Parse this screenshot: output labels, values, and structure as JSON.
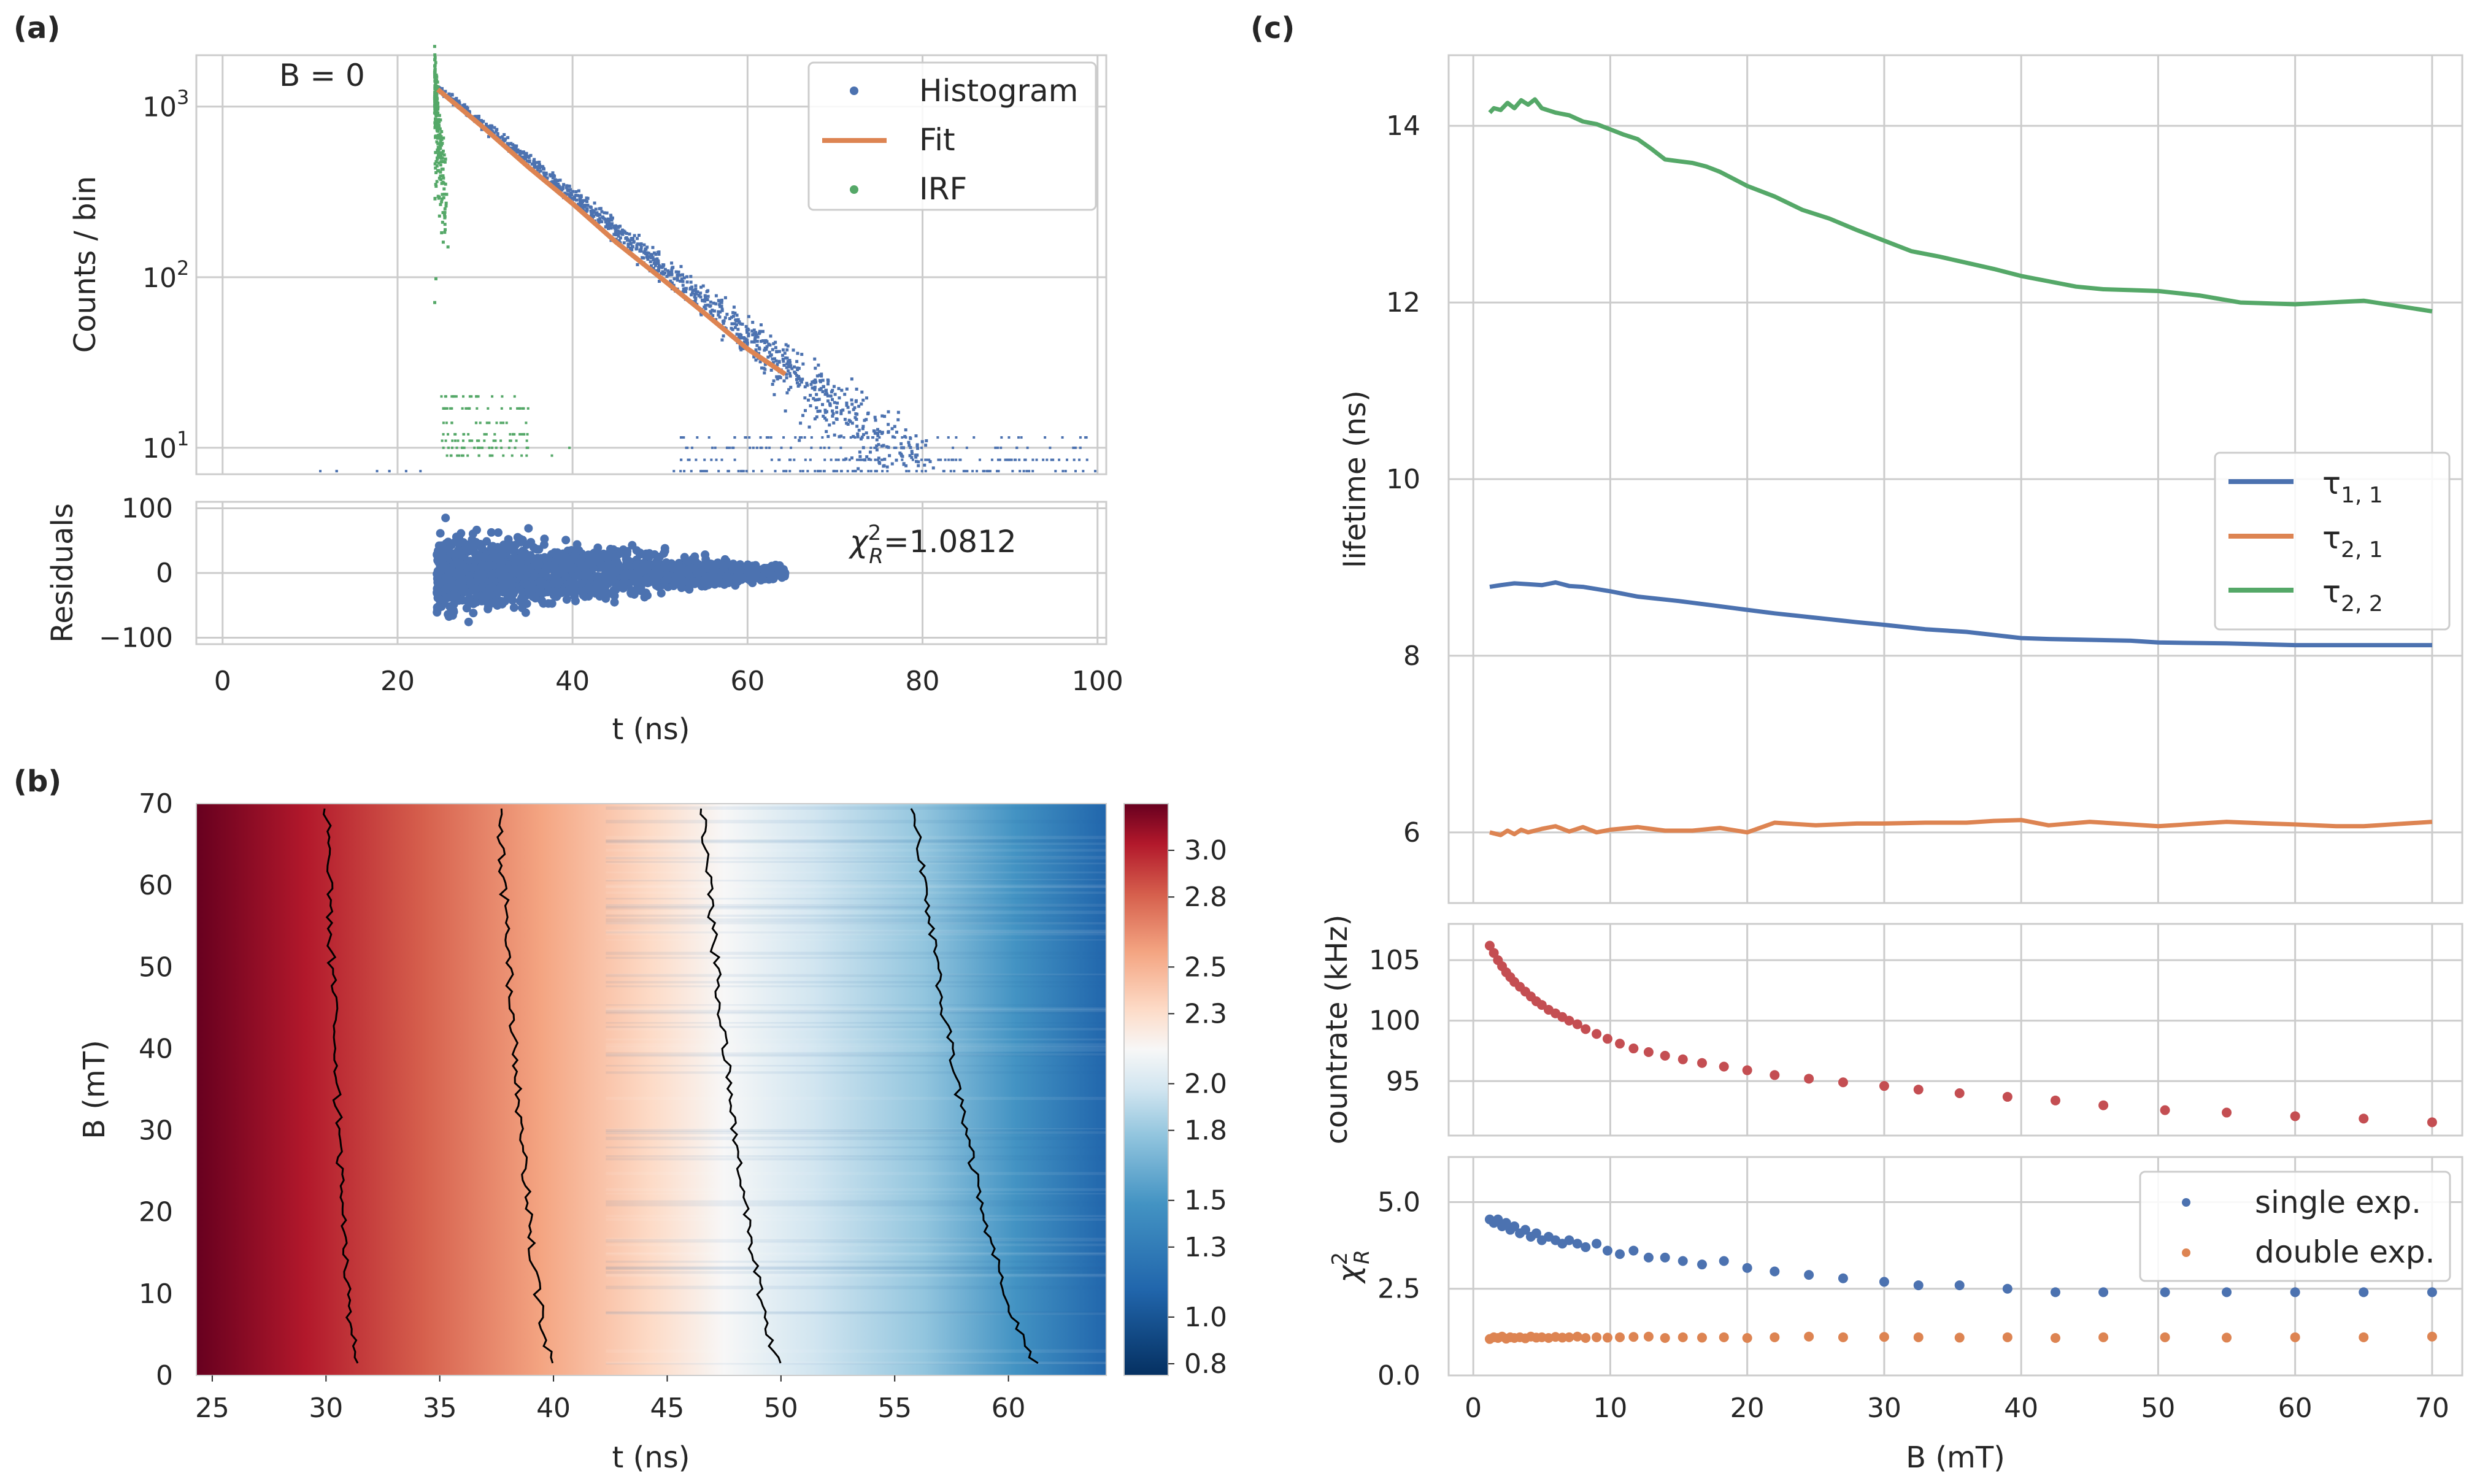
{
  "colors": {
    "blue": "#4c72b0",
    "orange": "#dd8452",
    "green": "#55a868",
    "red": "#c44e52",
    "grid": "#cccccc"
  },
  "chart_data": [
    {
      "id": "a_top",
      "panel_label": "(a)",
      "type": "scatter",
      "yscale": "log",
      "annotation": "B = 0",
      "ylabel": "Counts / bin",
      "xlim": [
        -3,
        101
      ],
      "ylim": [
        7,
        2000
      ],
      "yticks": [
        10,
        100,
        1000
      ],
      "ytick_labels": [
        "10^1",
        "10^2",
        "10^3"
      ],
      "series": [
        {
          "name": "Histogram",
          "kind": "points",
          "color": "#4c72b0",
          "peak_t": 24.5,
          "peak": 1300,
          "tau": 10.6,
          "floor_t": [
            2,
            100
          ]
        },
        {
          "name": "Fit",
          "kind": "line",
          "color": "#dd8452",
          "x": [
            24.6,
            30,
            35,
            40,
            45,
            50,
            55,
            60,
            64.3
          ],
          "y": [
            1260,
            740,
            440,
            270,
            160,
            100,
            62,
            38,
            27
          ]
        },
        {
          "name": "IRF",
          "kind": "points",
          "color": "#55a868",
          "peak_t": 24.2,
          "peak": 1250,
          "tau": 0.8,
          "floor_t": [
            24,
            45
          ]
        }
      ],
      "legend": [
        "Histogram",
        "Fit",
        "IRF"
      ]
    },
    {
      "id": "a_bottom",
      "type": "scatter",
      "ylabel": "Residuals",
      "xlabel": "t (ns)",
      "xlim": [
        -3,
        101
      ],
      "ylim": [
        -110,
        110
      ],
      "xticks": [
        0,
        20,
        40,
        60,
        80,
        100
      ],
      "yticks": [
        -100,
        0,
        100
      ],
      "annotation_pre": "χ",
      "annotation_sup": "2",
      "annotation_sub": "R",
      "annotation_post": "=1.0812",
      "residual_range_t": [
        24.5,
        64.3
      ],
      "residual_spread": [
        95,
        15
      ]
    },
    {
      "id": "b",
      "panel_label": "(b)",
      "type": "heatmap",
      "xlabel": "t (ns)",
      "ylabel": "B (mT)",
      "xlim": [
        24.3,
        64.3
      ],
      "ylim": [
        0,
        70
      ],
      "xticks": [
        25,
        30,
        35,
        40,
        45,
        50,
        55,
        60
      ],
      "yticks": [
        0,
        10,
        20,
        30,
        40,
        50,
        60,
        70
      ],
      "colorbar_ticks": [
        3.0,
        2.8,
        2.5,
        2.3,
        2.0,
        1.8,
        1.5,
        1.3,
        1.0,
        0.8
      ],
      "color_range": [
        0.75,
        3.2
      ],
      "contours": [
        {
          "t0": 31.5,
          "t70": 30.0
        },
        {
          "t0": 40.2,
          "t70": 37.6
        },
        {
          "t0": 50.4,
          "t70": 46.5
        },
        {
          "t0": 62.0,
          "t70": 55.8
        }
      ]
    },
    {
      "id": "c_top",
      "panel_label": "(c)",
      "type": "line",
      "ylabel": "lifetime (ns)",
      "xlim": [
        -1.8,
        72.2
      ],
      "ylim": [
        5.2,
        14.8
      ],
      "xticks": [
        0,
        10,
        20,
        30,
        40,
        50,
        60,
        70
      ],
      "yticks": [
        6,
        8,
        10,
        12,
        14
      ],
      "series": [
        {
          "name": "τ1,1",
          "sub": "1, 1",
          "color": "#4c72b0",
          "x": [
            1.2,
            2,
            3,
            4,
            5,
            6,
            7,
            8,
            10,
            12,
            15,
            18,
            20,
            22,
            25,
            28,
            30,
            33,
            36,
            40,
            42,
            45,
            48,
            50,
            55,
            60,
            65,
            70
          ],
          "y": [
            8.78,
            8.8,
            8.82,
            8.81,
            8.8,
            8.83,
            8.79,
            8.78,
            8.73,
            8.67,
            8.62,
            8.56,
            8.52,
            8.48,
            8.43,
            8.38,
            8.35,
            8.3,
            8.27,
            8.2,
            8.19,
            8.18,
            8.17,
            8.15,
            8.14,
            8.12,
            8.12,
            8.12
          ]
        },
        {
          "name": "τ2,1",
          "sub": "2, 1",
          "color": "#dd8452",
          "x": [
            1.2,
            2,
            2.5,
            3,
            3.5,
            4,
            5,
            6,
            7,
            8,
            9,
            10,
            12,
            14,
            16,
            18,
            20,
            22,
            25,
            28,
            30,
            33,
            36,
            38,
            40,
            42,
            45,
            48,
            50,
            53,
            55,
            58,
            60,
            63,
            65,
            70
          ],
          "y": [
            6.0,
            5.97,
            6.02,
            5.98,
            6.03,
            6.0,
            6.04,
            6.07,
            6.01,
            6.06,
            6.0,
            6.03,
            6.06,
            6.02,
            6.02,
            6.05,
            6.0,
            6.11,
            6.08,
            6.1,
            6.1,
            6.11,
            6.11,
            6.13,
            6.14,
            6.08,
            6.12,
            6.09,
            6.07,
            6.1,
            6.12,
            6.1,
            6.09,
            6.07,
            6.07,
            6.12
          ]
        },
        {
          "name": "τ2,2",
          "sub": "2, 2",
          "color": "#55a868",
          "x": [
            1.2,
            1.5,
            2,
            2.5,
            3,
            3.5,
            4,
            4.5,
            5,
            6,
            7,
            8,
            9,
            10,
            11,
            12,
            13,
            14,
            15,
            16,
            17,
            18,
            19,
            20,
            22,
            24,
            26,
            28,
            30,
            32,
            34,
            36,
            38,
            40,
            42,
            44,
            46,
            48,
            50,
            53,
            56,
            60,
            65,
            70
          ],
          "y": [
            14.15,
            14.2,
            14.18,
            14.26,
            14.2,
            14.29,
            14.24,
            14.3,
            14.2,
            14.15,
            14.12,
            14.05,
            14.02,
            13.96,
            13.9,
            13.85,
            13.74,
            13.62,
            13.6,
            13.58,
            13.54,
            13.48,
            13.4,
            13.32,
            13.2,
            13.05,
            12.95,
            12.82,
            12.7,
            12.58,
            12.52,
            12.45,
            12.38,
            12.3,
            12.24,
            12.18,
            12.15,
            12.14,
            12.13,
            12.08,
            12.0,
            11.98,
            12.02,
            11.9
          ]
        }
      ],
      "legend": [
        "τ1,1",
        "τ2,1",
        "τ2,2"
      ]
    },
    {
      "id": "c_mid",
      "type": "scatter",
      "ylabel": "countrate (kHz)",
      "xlim": [
        -1.8,
        72.2
      ],
      "ylim": [
        90.5,
        108
      ],
      "yticks": [
        95,
        100,
        105
      ],
      "series": [
        {
          "name": "countrate",
          "color": "#c44e52",
          "x": [
            1.2,
            1.5,
            1.8,
            2.1,
            2.4,
            2.7,
            3.0,
            3.4,
            3.8,
            4.2,
            4.6,
            5.0,
            5.5,
            6.0,
            6.5,
            7.0,
            7.6,
            8.2,
            9.0,
            9.8,
            10.7,
            11.7,
            12.8,
            14.0,
            15.3,
            16.7,
            18.3,
            20.0,
            22.0,
            24.5,
            27.0,
            30.0,
            32.5,
            35.5,
            39.0,
            42.5,
            46.0,
            50.5,
            55.0,
            60.0,
            65.0,
            70.0
          ],
          "y": [
            106.2,
            105.6,
            105.0,
            104.5,
            104.0,
            103.6,
            103.2,
            102.8,
            102.4,
            102.0,
            101.6,
            101.3,
            100.9,
            100.6,
            100.3,
            100.0,
            99.7,
            99.3,
            98.9,
            98.5,
            98.1,
            97.7,
            97.4,
            97.1,
            96.8,
            96.5,
            96.2,
            95.9,
            95.5,
            95.2,
            94.9,
            94.6,
            94.3,
            94.0,
            93.7,
            93.4,
            93.0,
            92.6,
            92.4,
            92.1,
            91.9,
            91.6
          ]
        }
      ]
    },
    {
      "id": "c_bottom",
      "type": "scatter",
      "ylabel_pre": "χ",
      "ylabel_sup": "2",
      "ylabel_sub": "R",
      "xlabel": "B (mT)",
      "xlim": [
        -1.8,
        72.2
      ],
      "ylim": [
        0,
        6.3
      ],
      "xticks": [
        0,
        10,
        20,
        30,
        40,
        50,
        60,
        70
      ],
      "yticks": [
        0.0,
        2.5,
        5.0
      ],
      "series": [
        {
          "name": "single exp.",
          "color": "#4c72b0",
          "x": [
            1.2,
            1.5,
            1.8,
            2.1,
            2.4,
            2.7,
            3.0,
            3.4,
            3.8,
            4.2,
            4.6,
            5.0,
            5.5,
            6.0,
            6.5,
            7.0,
            7.6,
            8.2,
            9.0,
            9.8,
            10.7,
            11.7,
            12.8,
            14.0,
            15.3,
            16.7,
            18.3,
            20.0,
            22.0,
            24.5,
            27.0,
            30.0,
            32.5,
            35.5,
            39.0,
            42.5,
            46.0,
            50.5,
            55.0,
            60.0,
            65.0,
            70.0
          ],
          "y": [
            4.5,
            4.4,
            4.5,
            4.3,
            4.4,
            4.2,
            4.3,
            4.1,
            4.2,
            4.0,
            4.1,
            3.9,
            4.0,
            3.9,
            3.8,
            3.9,
            3.8,
            3.7,
            3.8,
            3.6,
            3.5,
            3.6,
            3.4,
            3.4,
            3.3,
            3.2,
            3.3,
            3.1,
            3.0,
            2.9,
            2.8,
            2.7,
            2.6,
            2.6,
            2.5,
            2.4,
            2.4,
            2.4,
            2.4,
            2.4,
            2.4,
            2.4
          ]
        },
        {
          "name": "double exp.",
          "color": "#dd8452",
          "x": [
            1.2,
            1.5,
            1.8,
            2.1,
            2.4,
            2.7,
            3.0,
            3.4,
            3.8,
            4.2,
            4.6,
            5.0,
            5.5,
            6.0,
            6.5,
            7.0,
            7.6,
            8.2,
            9.0,
            9.8,
            10.7,
            11.7,
            12.8,
            14.0,
            15.3,
            16.7,
            18.3,
            20.0,
            22.0,
            24.5,
            27.0,
            30.0,
            32.5,
            35.5,
            39.0,
            42.5,
            46.0,
            50.5,
            55.0,
            60.0,
            65.0,
            70.0
          ],
          "y": [
            1.05,
            1.1,
            1.08,
            1.12,
            1.06,
            1.1,
            1.08,
            1.1,
            1.07,
            1.12,
            1.09,
            1.1,
            1.08,
            1.11,
            1.09,
            1.1,
            1.12,
            1.08,
            1.1,
            1.09,
            1.1,
            1.11,
            1.12,
            1.08,
            1.1,
            1.09,
            1.1,
            1.08,
            1.1,
            1.12,
            1.1,
            1.11,
            1.1,
            1.09,
            1.1,
            1.08,
            1.1,
            1.1,
            1.09,
            1.1,
            1.1,
            1.12
          ]
        }
      ],
      "legend": [
        "single exp.",
        "double exp."
      ]
    }
  ]
}
